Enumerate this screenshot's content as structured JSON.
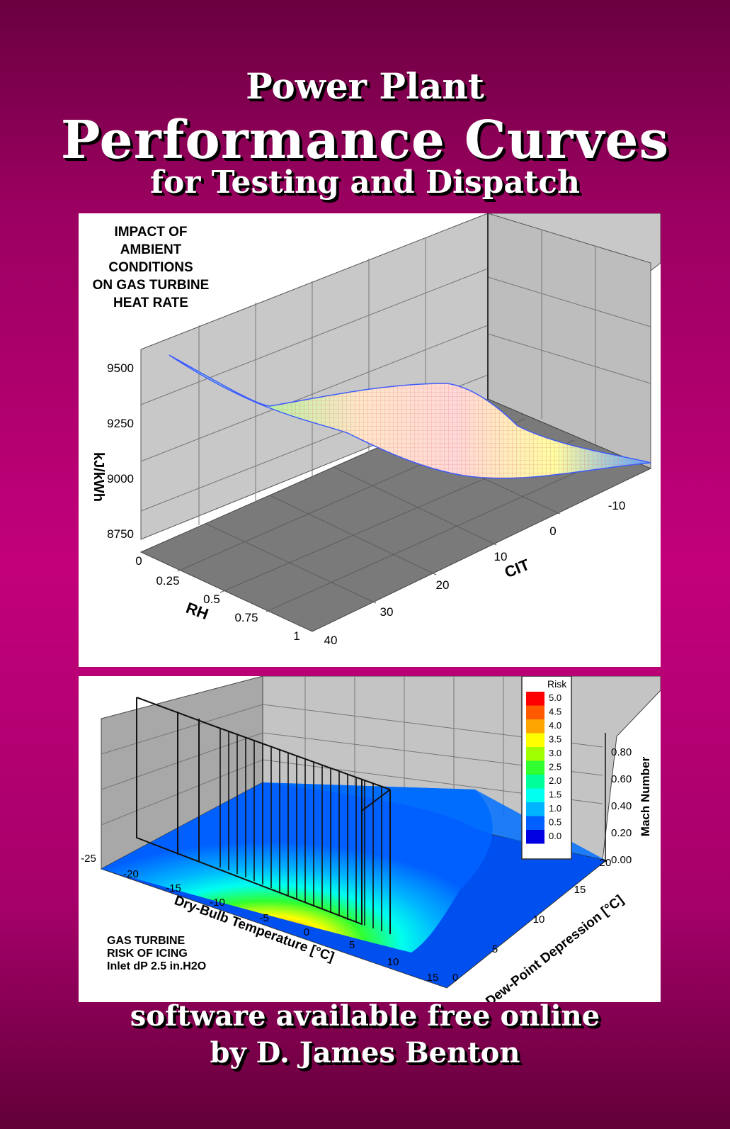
{
  "cover": {
    "title_line1": "Power Plant",
    "title_line2": "Performance Curves",
    "title_line3": "for Testing and Dispatch",
    "footer_line1": "software available free online",
    "footer_line2": "by D. James Benton"
  },
  "chart_data": [
    {
      "type": "surface",
      "title_lines": [
        "IMPACT OF",
        "AMBIENT",
        "CONDITIONS",
        "ON GAS TURBINE",
        "HEAT RATE"
      ],
      "zlabel": "kJ/kWh",
      "z_ticks": [
        "9500",
        "9250",
        "9000",
        "8750"
      ],
      "xlabel": "RH",
      "x_ticks": [
        "0",
        "0.25",
        "0.5",
        "0.75",
        "1"
      ],
      "ylabel": "CIT",
      "y_ticks": [
        "-10",
        "0",
        "10",
        "20",
        "30",
        "40"
      ]
    },
    {
      "type": "contour",
      "title_lines": [
        "GAS TURBINE",
        "RISK OF ICING",
        "Inlet dP 2.5 in.H2O"
      ],
      "xlabel": "Dry-Bulb Temperature [°C]",
      "x_ticks": [
        "-25",
        "-20",
        "-15",
        "-10",
        "-5",
        "0",
        "5",
        "10",
        "15"
      ],
      "ylabel": "Dew-Point Depression [°C]",
      "y_ticks": [
        "0",
        "5",
        "10",
        "15",
        "20"
      ],
      "zlabel": "Mach Number",
      "z_ticks": [
        "0.00",
        "0.20",
        "0.40",
        "0.60",
        "0.80"
      ],
      "legend": {
        "title": "Risk",
        "levels": [
          {
            "label": "5.0",
            "color": "#ff0000"
          },
          {
            "label": "4.5",
            "color": "#ff5a00"
          },
          {
            "label": "4.0",
            "color": "#ffa500"
          },
          {
            "label": "3.5",
            "color": "#ffff00"
          },
          {
            "label": "3.0",
            "color": "#a0ff00"
          },
          {
            "label": "2.5",
            "color": "#30ff30"
          },
          {
            "label": "2.0",
            "color": "#00ff9a"
          },
          {
            "label": "1.5",
            "color": "#00ffee"
          },
          {
            "label": "1.0",
            "color": "#00b4ff"
          },
          {
            "label": "0.5",
            "color": "#0060ff"
          },
          {
            "label": "0.0",
            "color": "#0000e0"
          }
        ]
      }
    }
  ]
}
